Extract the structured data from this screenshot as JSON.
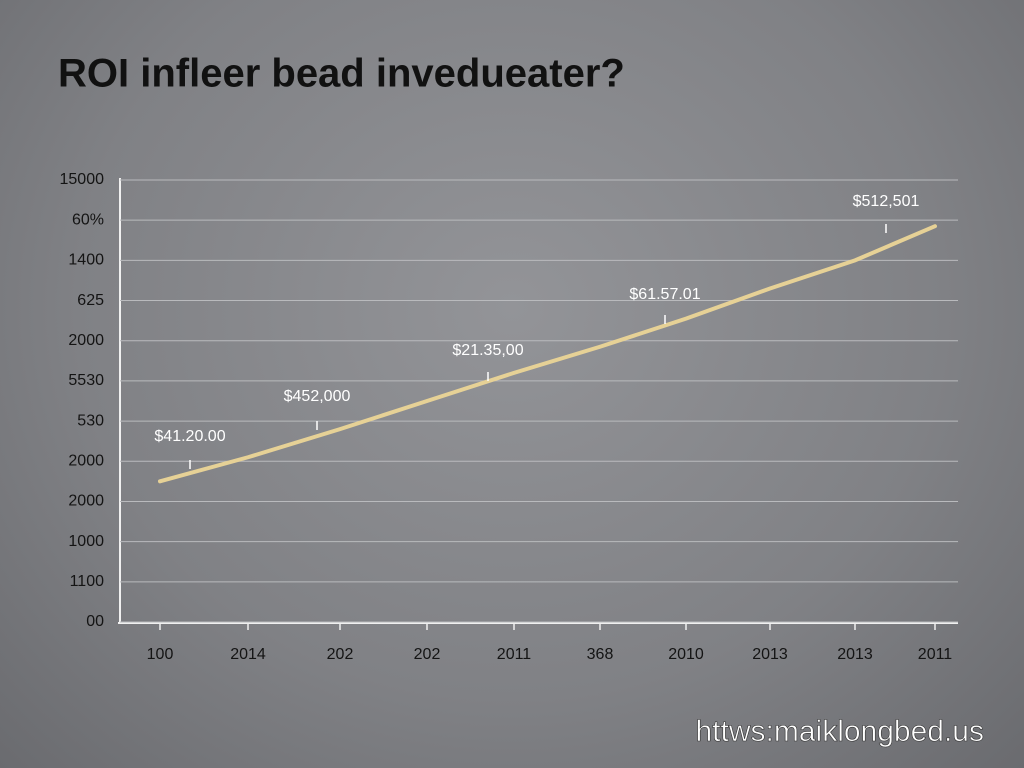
{
  "chart_data": {
    "type": "line",
    "title": "ROI infleer bead invedueater?",
    "categories": [
      "100",
      "2014",
      "202",
      "202",
      "2011",
      "368",
      "2010",
      "2013",
      "2013",
      "2011"
    ],
    "values": [
      3.5,
      4.1,
      4.8,
      5.5,
      6.2,
      6.85,
      7.55,
      8.3,
      9.0,
      9.85
    ],
    "color": "#e6d196",
    "ylim": [
      0,
      11
    ],
    "yticks": [
      {
        "value": 0,
        "label": "00"
      },
      {
        "value": 1,
        "label": "1100"
      },
      {
        "value": 2,
        "label": "1000"
      },
      {
        "value": 3,
        "label": "2000"
      },
      {
        "value": 4,
        "label": "2000"
      },
      {
        "value": 5,
        "label": "530"
      },
      {
        "value": 6,
        "label": "5530"
      },
      {
        "value": 7,
        "label": "2000"
      },
      {
        "value": 8,
        "label": "625"
      },
      {
        "value": 9,
        "label": "1400"
      },
      {
        "value": 10,
        "label": "60%"
      },
      {
        "value": 11,
        "label": "15000"
      }
    ],
    "grid": true,
    "annotations": [
      "$41.20.00",
      "$452,000",
      "$21.35,00",
      "$61.57.01",
      "$512,501"
    ]
  },
  "watermark": "httws:maiklongbed.us"
}
